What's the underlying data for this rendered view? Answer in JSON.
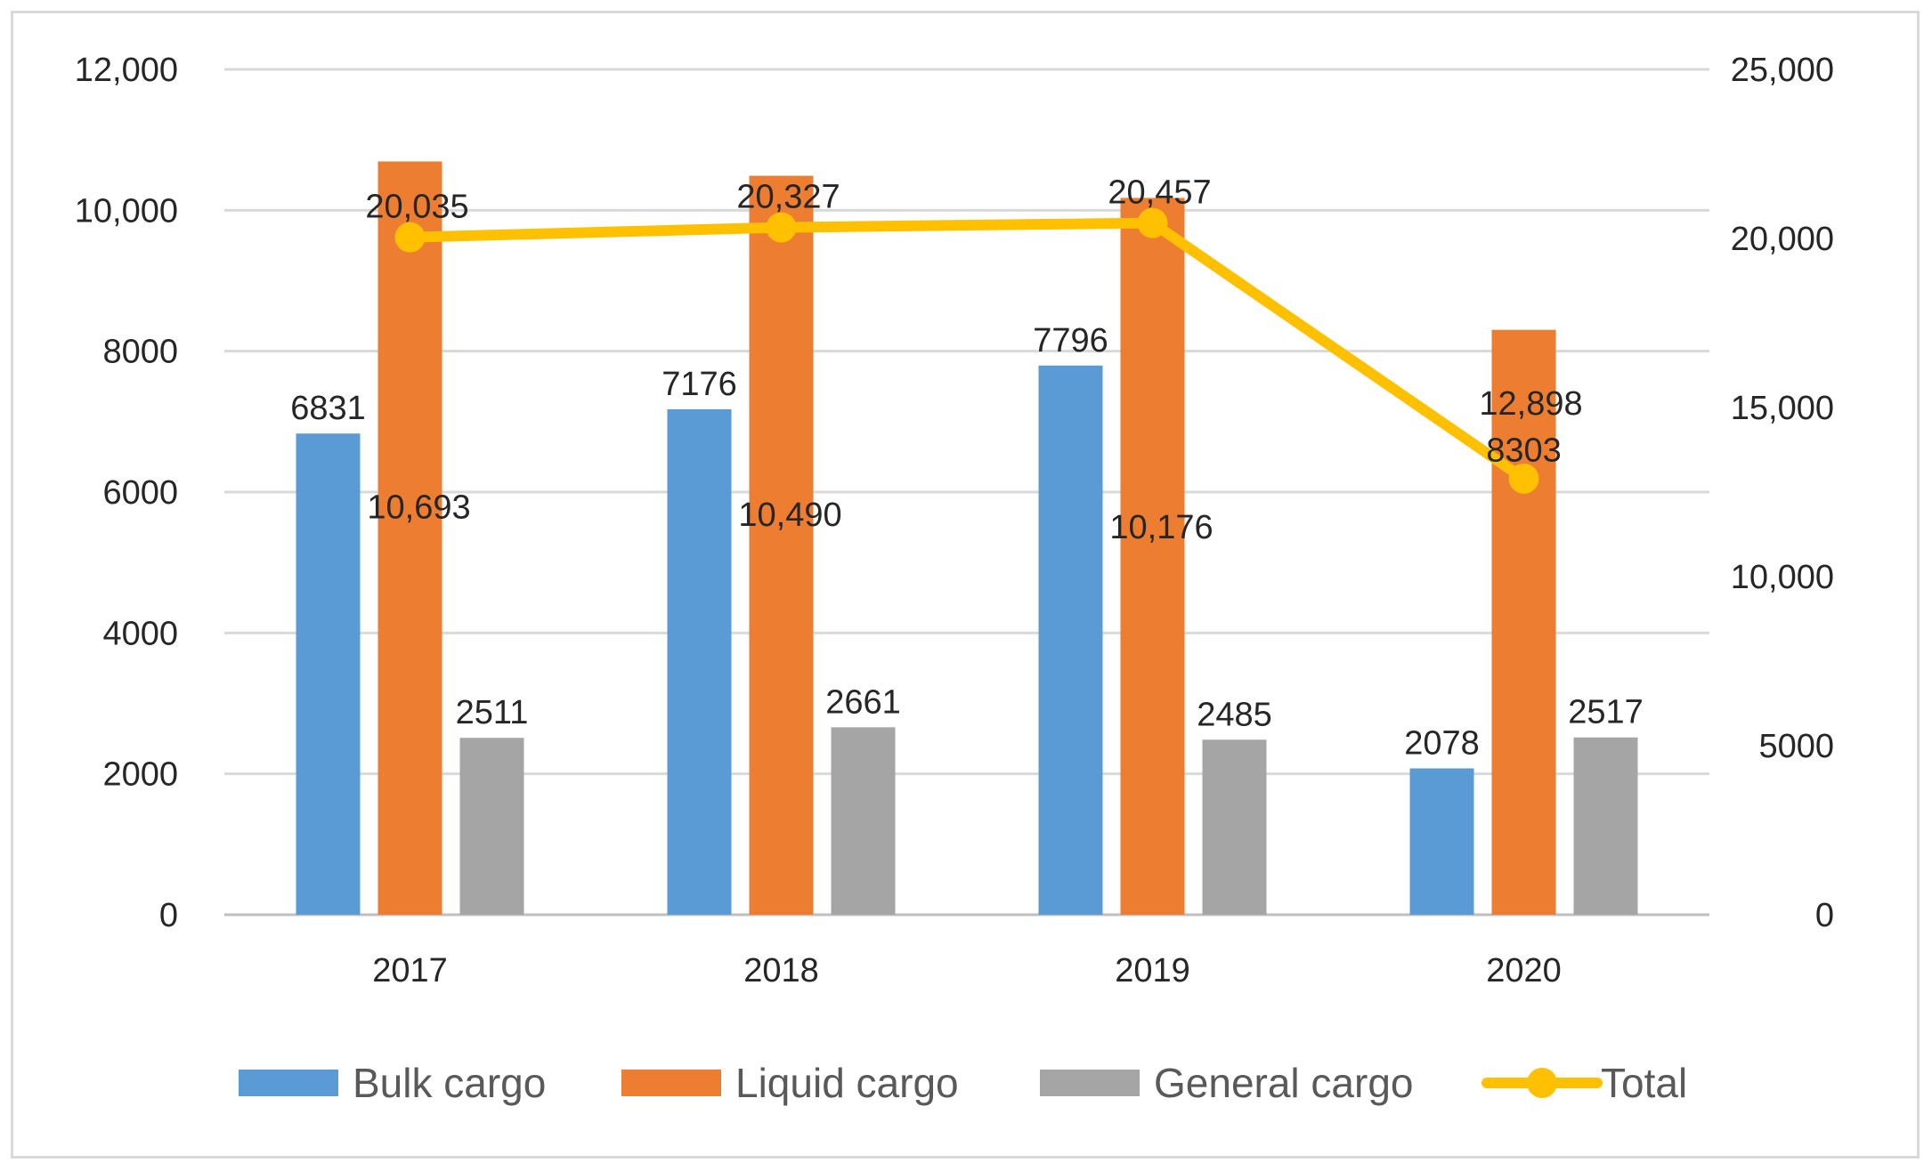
{
  "chart_data": {
    "type": "bar",
    "title": "",
    "categories": [
      "2017",
      "2018",
      "2019",
      "2020"
    ],
    "series": [
      {
        "name": "Bulk cargo",
        "kind": "bar",
        "axis": "left",
        "color": "#5b9bd5",
        "values": [
          6831,
          7176,
          7796,
          2078
        ],
        "labels": [
          "6831",
          "7176",
          "7796",
          "2078"
        ]
      },
      {
        "name": "Liquid cargo",
        "kind": "bar",
        "axis": "left",
        "color": "#ed7d31",
        "values": [
          10693,
          10490,
          10176,
          8303
        ],
        "labels": [
          "10,693",
          "10,490",
          "10,176",
          "8303"
        ]
      },
      {
        "name": "General cargo",
        "kind": "bar",
        "axis": "left",
        "color": "#a5a5a5",
        "values": [
          2511,
          2661,
          2485,
          2517
        ],
        "labels": [
          "2511",
          "2661",
          "2485",
          "2517"
        ]
      },
      {
        "name": "Total",
        "kind": "line",
        "axis": "right",
        "color": "#ffc000",
        "values": [
          20035,
          20327,
          20457,
          12898
        ],
        "labels": [
          "20,035",
          "20,327",
          "20,457",
          "12,898"
        ]
      }
    ],
    "y_left": {
      "range": [
        0,
        12000
      ],
      "ticks": [
        0,
        2000,
        4000,
        6000,
        8000,
        10000,
        12000
      ],
      "tick_labels": [
        "0",
        "2000",
        "4000",
        "6000",
        "8000",
        "10,000",
        "12,000"
      ]
    },
    "y_right": {
      "range": [
        0,
        25000
      ],
      "ticks": [
        0,
        5000,
        10000,
        15000,
        20000,
        25000
      ],
      "tick_labels": [
        "0",
        "5000",
        "10,000",
        "15,000",
        "20,000",
        "25,000"
      ]
    },
    "grid": true,
    "legend": "bottom"
  }
}
